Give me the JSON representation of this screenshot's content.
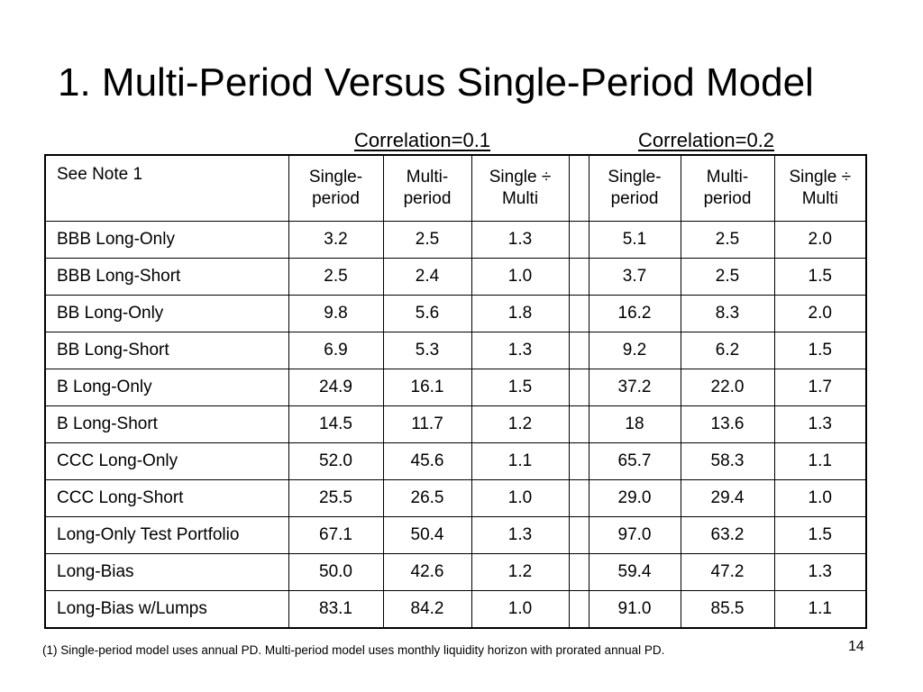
{
  "slide": {
    "title": "1. Multi-Period Versus Single-Period Model",
    "page_number": "14",
    "footnote": "(1) Single-period model uses annual PD.  Multi-period model uses monthly liquidity horizon with prorated annual PD."
  },
  "groups": {
    "corr1": "Correlation=0.1",
    "corr2": "Correlation=0.2"
  },
  "table": {
    "header": {
      "label": "See Note 1",
      "g1_single": [
        "Single-",
        "period"
      ],
      "g1_multi": [
        "Multi-",
        "period"
      ],
      "g1_ratio": [
        "Single ÷",
        "Multi"
      ],
      "g2_single": [
        "Single-",
        "period"
      ],
      "g2_multi": [
        "Multi-",
        "period"
      ],
      "g2_ratio": [
        "Single ÷",
        "Multi"
      ]
    },
    "rows": [
      {
        "label": "BBB Long-Only",
        "g1": [
          "3.2",
          "2.5",
          "1.3"
        ],
        "g2": [
          "5.1",
          "2.5",
          "2.0"
        ]
      },
      {
        "label": "BBB Long-Short",
        "g1": [
          "2.5",
          "2.4",
          "1.0"
        ],
        "g2": [
          "3.7",
          "2.5",
          "1.5"
        ]
      },
      {
        "label": "BB Long-Only",
        "g1": [
          "9.8",
          "5.6",
          "1.8"
        ],
        "g2": [
          "16.2",
          "8.3",
          "2.0"
        ]
      },
      {
        "label": "BB Long-Short",
        "g1": [
          "6.9",
          "5.3",
          "1.3"
        ],
        "g2": [
          "9.2",
          "6.2",
          "1.5"
        ]
      },
      {
        "label": "B Long-Only",
        "g1": [
          "24.9",
          "16.1",
          "1.5"
        ],
        "g2": [
          "37.2",
          "22.0",
          "1.7"
        ]
      },
      {
        "label": "B Long-Short",
        "g1": [
          "14.5",
          "11.7",
          "1.2"
        ],
        "g2": [
          "18",
          "13.6",
          "1.3"
        ]
      },
      {
        "label": "CCC Long-Only",
        "g1": [
          "52.0",
          "45.6",
          "1.1"
        ],
        "g2": [
          "65.7",
          "58.3",
          "1.1"
        ]
      },
      {
        "label": "CCC Long-Short",
        "g1": [
          "25.5",
          "26.5",
          "1.0"
        ],
        "g2": [
          "29.0",
          "29.4",
          "1.0"
        ]
      },
      {
        "label": "Long-Only Test Portfolio",
        "g1": [
          "67.1",
          "50.4",
          "1.3"
        ],
        "g2": [
          "97.0",
          "63.2",
          "1.5"
        ]
      },
      {
        "label": "Long-Bias",
        "g1": [
          "50.0",
          "42.6",
          "1.2"
        ],
        "g2": [
          "59.4",
          "47.2",
          "1.3"
        ]
      },
      {
        "label": "Long-Bias w/Lumps",
        "g1": [
          "83.1",
          "84.2",
          "1.0"
        ],
        "g2": [
          "91.0",
          "85.5",
          "1.1"
        ]
      }
    ]
  }
}
